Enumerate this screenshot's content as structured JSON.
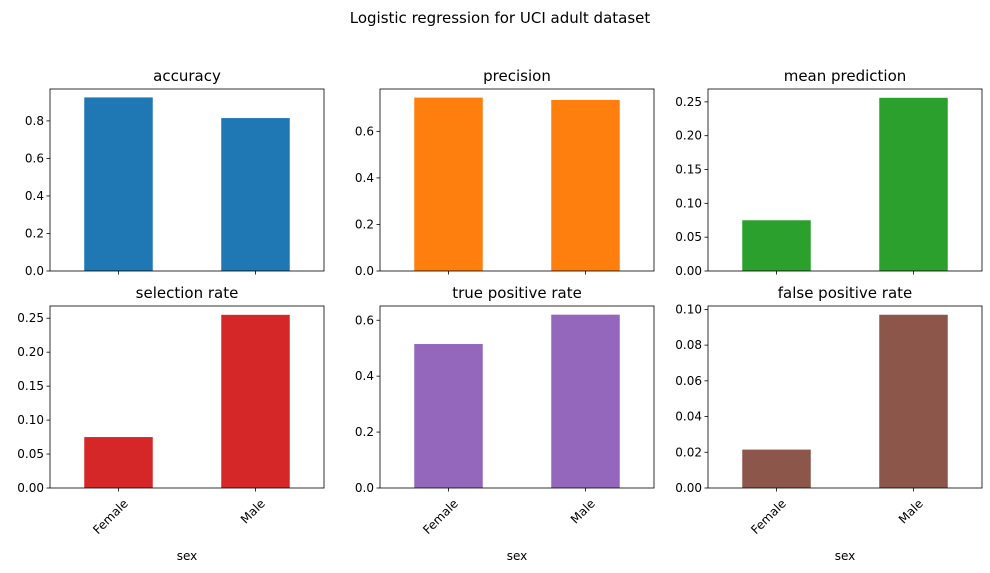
{
  "figure_title": "Logistic regression for UCI adult dataset",
  "colors": [
    "#1f77b4",
    "#ff7f0e",
    "#2ca02c",
    "#d62728",
    "#9467bd",
    "#8c564b"
  ],
  "chart_data": [
    {
      "type": "bar",
      "title": "accuracy",
      "categories": [
        "Female",
        "Male"
      ],
      "values": [
        0.925,
        0.815
      ],
      "xlabel": "",
      "ylabel": "",
      "ylim": [
        0,
        0.97
      ],
      "yticks": [
        0.0,
        0.2,
        0.4,
        0.6,
        0.8
      ],
      "ytick_labels": [
        "0.0",
        "0.2",
        "0.4",
        "0.6",
        "0.8"
      ],
      "show_xticklabels": false,
      "color": "#1f77b4",
      "legend": false,
      "grid": false
    },
    {
      "type": "bar",
      "title": "precision",
      "categories": [
        "Female",
        "Male"
      ],
      "values": [
        0.745,
        0.735
      ],
      "xlabel": "",
      "ylabel": "",
      "ylim": [
        0,
        0.782
      ],
      "yticks": [
        0.0,
        0.2,
        0.4,
        0.6
      ],
      "ytick_labels": [
        "0.0",
        "0.2",
        "0.4",
        "0.6"
      ],
      "show_xticklabels": false,
      "color": "#ff7f0e",
      "legend": false,
      "grid": false
    },
    {
      "type": "bar",
      "title": "mean prediction",
      "categories": [
        "Female",
        "Male"
      ],
      "values": [
        0.075,
        0.256
      ],
      "xlabel": "",
      "ylabel": "",
      "ylim": [
        0,
        0.269
      ],
      "yticks": [
        0.0,
        0.05,
        0.1,
        0.15,
        0.2,
        0.25
      ],
      "ytick_labels": [
        "0.00",
        "0.05",
        "0.10",
        "0.15",
        "0.20",
        "0.25"
      ],
      "show_xticklabels": false,
      "color": "#2ca02c",
      "legend": false,
      "grid": false
    },
    {
      "type": "bar",
      "title": "selection rate",
      "categories": [
        "Female",
        "Male"
      ],
      "values": [
        0.075,
        0.255
      ],
      "xlabel": "sex",
      "ylabel": "",
      "ylim": [
        0,
        0.268
      ],
      "yticks": [
        0.0,
        0.05,
        0.1,
        0.15,
        0.2,
        0.25
      ],
      "ytick_labels": [
        "0.00",
        "0.05",
        "0.10",
        "0.15",
        "0.20",
        "0.25"
      ],
      "show_xticklabels": true,
      "color": "#d62728",
      "legend": false,
      "grid": false
    },
    {
      "type": "bar",
      "title": "true positive rate",
      "categories": [
        "Female",
        "Male"
      ],
      "values": [
        0.515,
        0.62
      ],
      "xlabel": "sex",
      "ylabel": "",
      "ylim": [
        0,
        0.651
      ],
      "yticks": [
        0.0,
        0.2,
        0.4,
        0.6
      ],
      "ytick_labels": [
        "0.0",
        "0.2",
        "0.4",
        "0.6"
      ],
      "show_xticklabels": true,
      "color": "#9467bd",
      "legend": false,
      "grid": false
    },
    {
      "type": "bar",
      "title": "false positive rate",
      "categories": [
        "Female",
        "Male"
      ],
      "values": [
        0.0215,
        0.097
      ],
      "xlabel": "sex",
      "ylabel": "",
      "ylim": [
        0,
        0.1019
      ],
      "yticks": [
        0.0,
        0.02,
        0.04,
        0.06,
        0.08,
        0.1
      ],
      "ytick_labels": [
        "0.00",
        "0.02",
        "0.04",
        "0.06",
        "0.08",
        "0.10"
      ],
      "show_xticklabels": true,
      "color": "#8c564b",
      "legend": false,
      "grid": false
    }
  ]
}
